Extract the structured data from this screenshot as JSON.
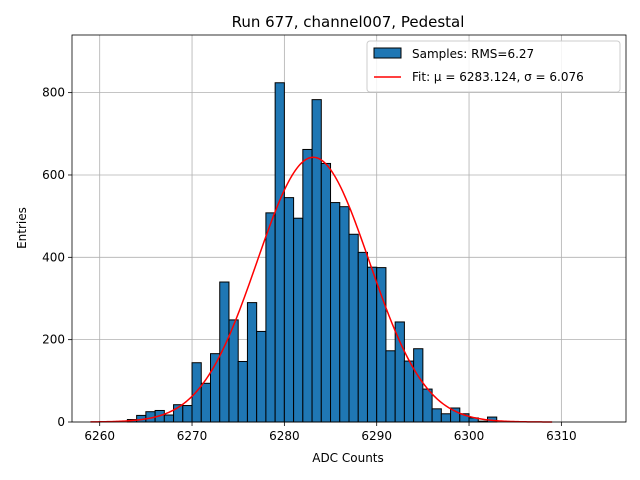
{
  "chart_data": {
    "type": "bar",
    "title": "Run 677, channel007, Pedestal",
    "xlabel": "ADC Counts",
    "ylabel": "Entries",
    "xlim": [
      6257,
      6317
    ],
    "ylim": [
      0,
      940
    ],
    "xticks": [
      6260,
      6270,
      6280,
      6290,
      6300,
      6310
    ],
    "yticks": [
      0,
      200,
      400,
      600,
      800
    ],
    "grid": true,
    "legend_position": "top-right",
    "bin_width": 1,
    "series": [
      {
        "name": "Samples: RMS=6.27",
        "kind": "histogram",
        "color": "#1f77b4",
        "edgecolor": "#000000",
        "bin_starts": [
          6263,
          6264,
          6265,
          6266,
          6267,
          6268,
          6269,
          6270,
          6271,
          6272,
          6273,
          6274,
          6275,
          6276,
          6277,
          6278,
          6279,
          6280,
          6281,
          6282,
          6283,
          6284,
          6285,
          6286,
          6287,
          6288,
          6289,
          6290,
          6291,
          6292,
          6293,
          6294,
          6295,
          6296,
          6297,
          6298,
          6299,
          6300,
          6301,
          6302
        ],
        "values": [
          6,
          16,
          25,
          28,
          17,
          42,
          40,
          144,
          94,
          166,
          340,
          248,
          147,
          290,
          220,
          508,
          824,
          545,
          495,
          662,
          783,
          628,
          533,
          523,
          456,
          412,
          376,
          375,
          173,
          243,
          148,
          178,
          80,
          32,
          20,
          34,
          20,
          10,
          2,
          12
        ]
      },
      {
        "name": "Fit: μ = 6283.124, σ = 6.076",
        "kind": "gaussian",
        "color": "#ff0000",
        "mu": 6283.124,
        "sigma": 6.076,
        "amplitude": 643,
        "x_range": [
          6259,
          6309
        ]
      }
    ]
  }
}
